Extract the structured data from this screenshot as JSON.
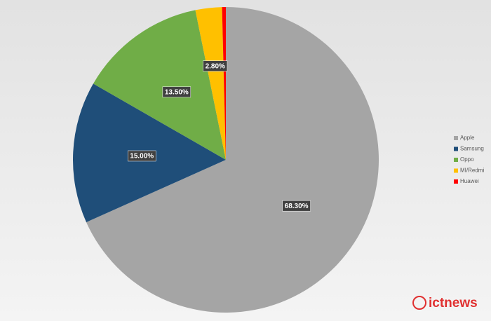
{
  "chart_data": {
    "type": "pie",
    "categories": [
      "Apple",
      "Samsung",
      "Oppo",
      "MI/Redmi",
      "Huawei"
    ],
    "values": [
      68.3,
      15.0,
      13.5,
      2.8,
      0.4
    ],
    "value_labels": [
      "68.30%",
      "15.00%",
      "13.50%",
      "2.80%",
      null
    ],
    "colors": [
      "#a5a5a5",
      "#1f4e79",
      "#70ad47",
      "#ffc000",
      "#ff0000"
    ],
    "legend": "right",
    "watermark": "ictnews"
  }
}
